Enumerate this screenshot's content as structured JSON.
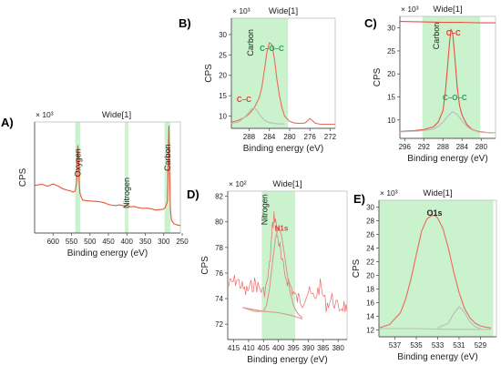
{
  "chart_data": [
    {
      "panel": "A)",
      "type": "line",
      "title": "Wide[1]",
      "xlabel": "Binding energy (eV)",
      "ylabel": "CPS",
      "y_multiplier": "× 10³",
      "xlim": [
        650,
        255
      ],
      "ylim": [
        0,
        28
      ],
      "xticks": [
        600,
        550,
        500,
        450,
        400,
        350,
        300,
        250
      ],
      "grid": false,
      "regions": [
        {
          "label": "Oxygen",
          "from": 540,
          "to": 526
        },
        {
          "label": "Nitrogen",
          "from": 405,
          "to": 396
        },
        {
          "label": "Carbon",
          "from": 298,
          "to": 282
        }
      ],
      "series": [
        {
          "color": "#e5553d",
          "x": [
            650,
            630,
            615,
            600,
            585,
            575,
            562,
            552,
            546,
            540,
            536,
            533,
            531,
            529,
            527,
            524,
            520,
            505,
            490,
            475,
            460,
            450,
            440,
            430,
            420,
            410,
            402,
            400,
            396,
            390,
            380,
            370,
            355,
            345,
            335,
            322,
            312,
            302,
            296,
            290,
            288,
            286,
            284,
            282,
            279,
            272,
            262,
            255
          ],
          "y": [
            12.0,
            12.3,
            11.8,
            12.4,
            11.8,
            11.2,
            10.8,
            10.6,
            10.3,
            10.6,
            13.0,
            22.0,
            20.0,
            12.5,
            10.0,
            9.2,
            8.3,
            8.1,
            8.0,
            7.9,
            7.6,
            7.2,
            7.0,
            6.9,
            7.1,
            6.9,
            7.0,
            7.2,
            6.8,
            6.6,
            6.7,
            6.4,
            6.2,
            6.3,
            6.1,
            5.8,
            5.9,
            6.0,
            6.4,
            8.0,
            18.0,
            27.0,
            15.0,
            6.0,
            3.2,
            2.3,
            2.0,
            1.9
          ]
        }
      ]
    },
    {
      "panel": "B)",
      "type": "line",
      "title": "Wide[1]",
      "xlabel": "Binding energy (eV)",
      "ylabel": "CPS",
      "y_multiplier": "× 10³",
      "xlim": [
        291.5,
        271
      ],
      "ylim": [
        7,
        34
      ],
      "xticks": [
        288,
        284,
        280,
        276,
        272
      ],
      "yticks": [
        10,
        15,
        20,
        25,
        30
      ],
      "grid": false,
      "regions": [
        {
          "label": "Carbon",
          "from": 291.5,
          "to": 280.3
        }
      ],
      "annotations": [
        {
          "text": "C–O–C",
          "color": "#1fa35c"
        },
        {
          "text": "C–C",
          "color": "#e43b3b"
        }
      ],
      "series": [
        {
          "color": "#ee6a5a",
          "x": [
            291.5,
            290,
            289,
            288,
            287,
            286,
            285.5,
            285,
            284.5,
            284,
            283.5,
            283,
            282.5,
            282,
            281.5,
            281,
            280,
            279,
            278,
            277,
            276.5,
            276,
            275.5,
            275,
            274,
            273,
            272,
            271
          ],
          "y": [
            8.5,
            9.0,
            9.6,
            10.5,
            12.0,
            14.5,
            17.0,
            21.0,
            25.5,
            28.0,
            27.5,
            24.0,
            19.0,
            15.0,
            12.0,
            10.0,
            8.7,
            8.3,
            8.2,
            8.3,
            8.8,
            9.4,
            8.9,
            8.3,
            8.0,
            8.0,
            8.0,
            8.0
          ]
        },
        {
          "color": "#bcbcbc",
          "x": [
            291.5,
            290,
            289,
            288,
            287.5,
            287,
            286.5,
            286,
            285,
            284,
            283,
            282,
            281
          ],
          "y": [
            8.2,
            8.6,
            9.6,
            11.0,
            11.8,
            12.0,
            11.5,
            10.5,
            9.0,
            8.4,
            8.2,
            8.1,
            8.1
          ]
        }
      ]
    },
    {
      "panel": "C)",
      "type": "line",
      "title": "Wide[1]",
      "xlabel": "Binding energy (eV)",
      "ylabel": "CPS",
      "y_multiplier": "× 10³",
      "xlim": [
        297,
        277
      ],
      "ylim": [
        6,
        32.5
      ],
      "xticks": [
        296,
        292,
        288,
        284,
        280
      ],
      "yticks": [
        10,
        15,
        20,
        25,
        30
      ],
      "grid": false,
      "regions": [
        {
          "label": "Carbon",
          "from": 292.3,
          "to": 280.2
        }
      ],
      "annotations": [
        {
          "text": "C–C",
          "color": "#e43b3b"
        },
        {
          "text": "C–O–C",
          "color": "#1fa35c"
        }
      ],
      "series": [
        {
          "color": "#e5553d",
          "x": [
            297,
            294,
            292,
            290,
            289,
            288,
            287.5,
            287,
            286.6,
            286.3,
            286,
            285.7,
            285.3,
            285,
            284.5,
            284,
            283,
            282,
            281,
            280,
            279,
            278,
            277
          ],
          "y": [
            7.5,
            7.7,
            7.9,
            8.5,
            9.5,
            12.0,
            16.0,
            22.0,
            27.0,
            29.7,
            29.0,
            26.0,
            21.0,
            17.0,
            13.0,
            11.0,
            9.0,
            8.0,
            7.6,
            7.4,
            7.3,
            7.2,
            7.2
          ]
        },
        {
          "color": "#bcbcbc",
          "x": [
            297,
            293,
            290,
            289,
            288,
            287,
            286,
            285,
            284,
            283,
            282,
            281,
            280,
            277
          ],
          "y": [
            7.4,
            7.6,
            8.0,
            8.6,
            9.5,
            10.8,
            11.8,
            11.2,
            9.8,
            8.6,
            7.9,
            7.5,
            7.3,
            7.2
          ]
        },
        {
          "color": "#e5553d",
          "x": [
            297,
            292,
            288,
            284,
            280,
            277
          ],
          "y": [
            31.4,
            31.3,
            31.2,
            31.2,
            31.1,
            31.1
          ]
        }
      ]
    },
    {
      "panel": "D)",
      "type": "line",
      "title": "Wide[1]",
      "xlabel": "Binding energy (eV)",
      "ylabel": "CPS",
      "y_multiplier": "× 10²",
      "xlim": [
        417,
        377
      ],
      "ylim": [
        70.8,
        82.4
      ],
      "xticks": [
        415,
        410,
        405,
        400,
        395,
        390,
        385,
        380
      ],
      "yticks": [
        72,
        74,
        76,
        78,
        80,
        82
      ],
      "grid": false,
      "regions": [
        {
          "label": "Nitrogen",
          "from": 405.6,
          "to": 394.4
        }
      ],
      "annotations": [
        {
          "text": "N1s",
          "color": "#e43b3b"
        }
      ],
      "series": [
        {
          "color": "#e96b6b",
          "noisy": true,
          "x": [
            417,
            414,
            411,
            408,
            405,
            404,
            403,
            402.5,
            402,
            401.5,
            401,
            400.5,
            400,
            399.5,
            399,
            398,
            397,
            396,
            395,
            394,
            393,
            392,
            390,
            388,
            386,
            384,
            382,
            380,
            378,
            377
          ],
          "y": [
            75.0,
            75.5,
            74.5,
            75.2,
            74.5,
            75.0,
            76.5,
            78.0,
            79.5,
            80.5,
            80.2,
            79.0,
            78.5,
            78.0,
            77.0,
            76.0,
            75.5,
            75.0,
            74.5,
            74.0,
            74.0,
            73.8,
            74.5,
            74.0,
            75.0,
            73.5,
            74.0,
            73.2,
            73.5,
            73.0
          ]
        },
        {
          "color": "#d89a8a",
          "x": [
            412,
            408,
            405,
            404,
            403,
            402,
            401,
            400,
            399,
            398,
            397,
            396,
            395,
            394,
            393,
            392
          ],
          "y": [
            73.3,
            73.0,
            73.0,
            73.5,
            74.8,
            76.8,
            78.7,
            79.6,
            79.0,
            77.5,
            75.8,
            74.4,
            73.5,
            73.0,
            72.7,
            72.5
          ]
        },
        {
          "color": "#d89a8a",
          "x": [
            412,
            405,
            400,
            396,
            393,
            392
          ],
          "y": [
            73.3,
            73.0,
            72.9,
            72.7,
            72.5,
            72.4
          ]
        }
      ]
    },
    {
      "panel": "E)",
      "type": "line",
      "title": "Wide[1]",
      "xlabel": "Binding energy (eV)",
      "ylabel": "CPS",
      "y_multiplier": "× 10³",
      "xlim": [
        538.5,
        527.5
      ],
      "ylim": [
        11,
        31
      ],
      "xticks": [
        537,
        535,
        533,
        531,
        529
      ],
      "yticks": [
        12,
        14,
        16,
        18,
        20,
        22,
        24,
        26,
        28,
        30
      ],
      "grid": false,
      "regions": [
        {
          "label": "O1s",
          "from": 538.5,
          "to": 527.8
        }
      ],
      "series": [
        {
          "color": "#ee6a5a",
          "x": [
            538.5,
            537.5,
            536.5,
            536,
            535.5,
            535,
            534.5,
            534,
            533.5,
            533.2,
            533,
            532.5,
            532,
            531.5,
            531,
            530.5,
            530,
            529.5,
            529,
            528.5,
            528
          ],
          "y": [
            12.3,
            12.8,
            14.5,
            16.5,
            19.5,
            23.0,
            26.5,
            28.3,
            28.8,
            28.7,
            28.4,
            26.8,
            24.0,
            20.5,
            17.5,
            15.2,
            13.8,
            13.0,
            12.6,
            12.4,
            12.3
          ]
        },
        {
          "color": "#bcbcbc",
          "x": [
            533,
            532,
            531.5,
            531,
            530.5,
            530,
            529.5,
            529
          ],
          "y": [
            12.3,
            13.0,
            14.4,
            15.4,
            14.6,
            13.2,
            12.5,
            12.2
          ]
        },
        {
          "color": "#bcbcbc",
          "x": [
            538.5,
            535,
            532,
            529,
            528
          ],
          "y": [
            12.2,
            12.2,
            12.1,
            12.1,
            12.1
          ]
        }
      ]
    }
  ]
}
